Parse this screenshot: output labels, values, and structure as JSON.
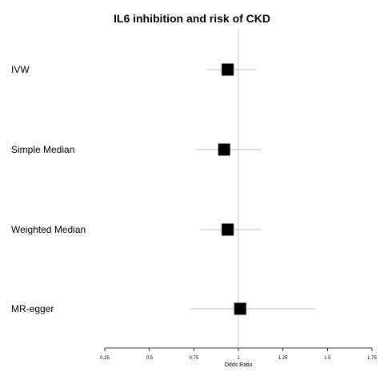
{
  "chart_data": {
    "type": "forest",
    "title": "IL6 inhibition and risk of CKD",
    "xlabel": "Odds Ratio",
    "xlim": [
      0.25,
      1.75
    ],
    "x_ticks": [
      "0.25",
      "0.5",
      "0.75",
      "1",
      "1.25",
      "1.5",
      "1.75"
    ],
    "reference_line": 1,
    "rows": [
      {
        "label": "IVW",
        "estimate": 0.94,
        "lower": 0.82,
        "upper": 1.1
      },
      {
        "label": "Simple Median",
        "estimate": 0.92,
        "lower": 0.76,
        "upper": 1.13
      },
      {
        "label": "Weighted Median",
        "estimate": 0.94,
        "lower": 0.79,
        "upper": 1.13
      },
      {
        "label": "MR-egger",
        "estimate": 1.01,
        "lower": 0.73,
        "upper": 1.43
      }
    ]
  }
}
